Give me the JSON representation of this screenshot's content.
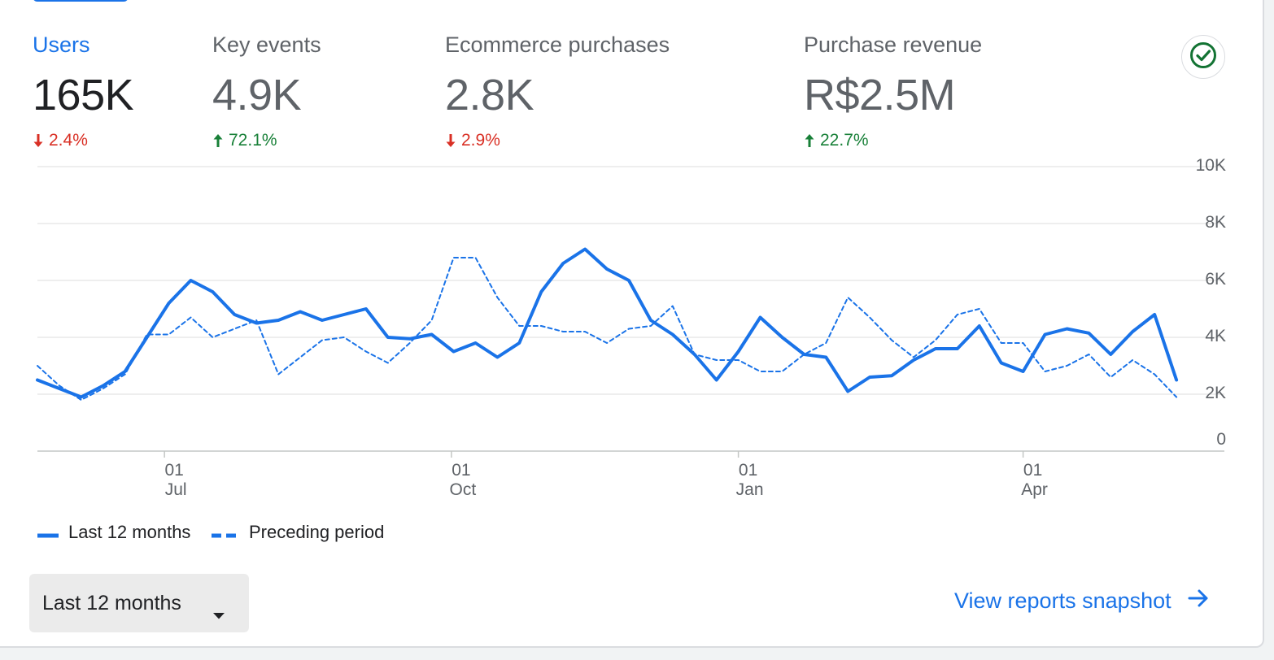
{
  "metrics": [
    {
      "label": "Users",
      "value": "165K",
      "change": "2.4%",
      "direction": "down"
    },
    {
      "label": "Key events",
      "value": "4.9K",
      "change": "72.1%",
      "direction": "up"
    },
    {
      "label": "Ecommerce purchases",
      "value": "2.8K",
      "change": "2.9%",
      "direction": "down"
    },
    {
      "label": "Purchase revenue",
      "value": "R$2.5M",
      "change": "22.7%",
      "direction": "up"
    }
  ],
  "status_icon": "check-circle-icon",
  "colors": {
    "accent": "#1a73e8",
    "down": "#d93025",
    "up": "#188038",
    "status_check": "#137333"
  },
  "chart_data": {
    "type": "line",
    "y_range": [
      0,
      10000
    ],
    "y_tick_values": [
      0,
      2000,
      4000,
      6000,
      8000,
      10000
    ],
    "y_tick_labels": [
      "0",
      "2K",
      "4K",
      "6K",
      "8K",
      "10K"
    ],
    "x_ticks": [
      {
        "day": "01",
        "month": "Jul",
        "week_index": 5.8
      },
      {
        "day": "01",
        "month": "Oct",
        "week_index": 18.9
      },
      {
        "day": "01",
        "month": "Jan",
        "week_index": 32.0
      },
      {
        "day": "01",
        "month": "Apr",
        "week_index": 45.0
      }
    ],
    "x_range_weeks": [
      0,
      51.7
    ],
    "grid": true,
    "legend_position": "bottom-left",
    "series": [
      {
        "name": "Last 12 months",
        "style": "solid",
        "values": [
          2500,
          2200,
          1900,
          2300,
          2800,
          4000,
          5200,
          6000,
          5600,
          4800,
          4500,
          4600,
          4900,
          4600,
          4800,
          5000,
          4000,
          3950,
          4100,
          3500,
          3800,
          3300,
          3800,
          5600,
          6600,
          7100,
          6400,
          6000,
          4600,
          4100,
          3400,
          2500,
          3500,
          4700,
          4000,
          3400,
          3300,
          2100,
          2600,
          2650,
          3200,
          3600,
          3600,
          4400,
          3100,
          2800,
          4100,
          4300,
          4150,
          3400,
          4200,
          4800,
          2500
        ]
      },
      {
        "name": "Preceding period",
        "style": "dashed",
        "values": [
          3000,
          2300,
          1800,
          2200,
          2700,
          4100,
          4100,
          4700,
          4000,
          4300,
          4600,
          2700,
          3300,
          3900,
          4000,
          3500,
          3100,
          3800,
          4600,
          6800,
          6800,
          5400,
          4400,
          4400,
          4200,
          4200,
          3800,
          4300,
          4400,
          5100,
          3400,
          3200,
          3200,
          2800,
          2800,
          3400,
          3800,
          5400,
          4700,
          3900,
          3300,
          3900,
          4800,
          5000,
          3800,
          3800,
          2800,
          3000,
          3400,
          2600,
          3200,
          2700,
          1900
        ]
      }
    ]
  },
  "legend": {
    "current": "Last 12 months",
    "previous": "Preceding period"
  },
  "range_select": {
    "value": "Last 12 months"
  },
  "footer": {
    "link_text": "View reports snapshot"
  }
}
